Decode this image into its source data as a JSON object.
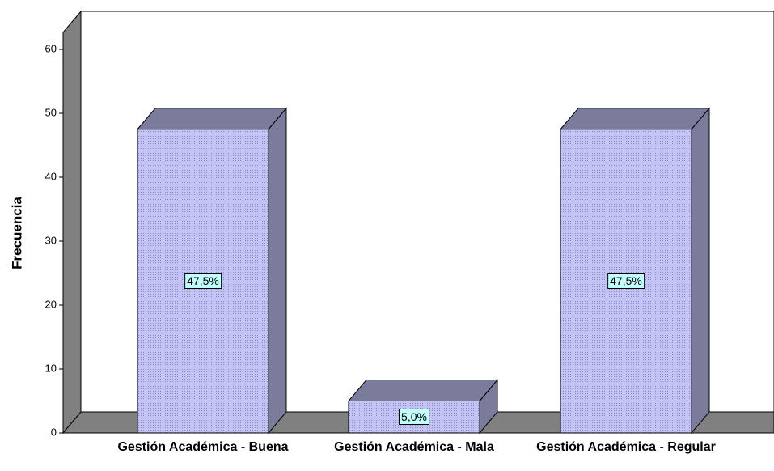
{
  "chart_data": {
    "type": "bar3d",
    "y_label": "Frecuencia",
    "categories": [
      "Gestión Académica - Buena",
      "Gestión Académica - Mala",
      "Gestión Académica - Regular"
    ],
    "values": [
      47.5,
      5,
      47.5
    ],
    "value_labels": [
      "47,5%",
      "5,0%",
      "47,5%"
    ],
    "color": "#b8b8ee",
    "side_color": "#7b7b9c",
    "ylim": [
      0,
      60
    ],
    "yticks": [
      0,
      10,
      20,
      30,
      40,
      50,
      60
    ]
  }
}
